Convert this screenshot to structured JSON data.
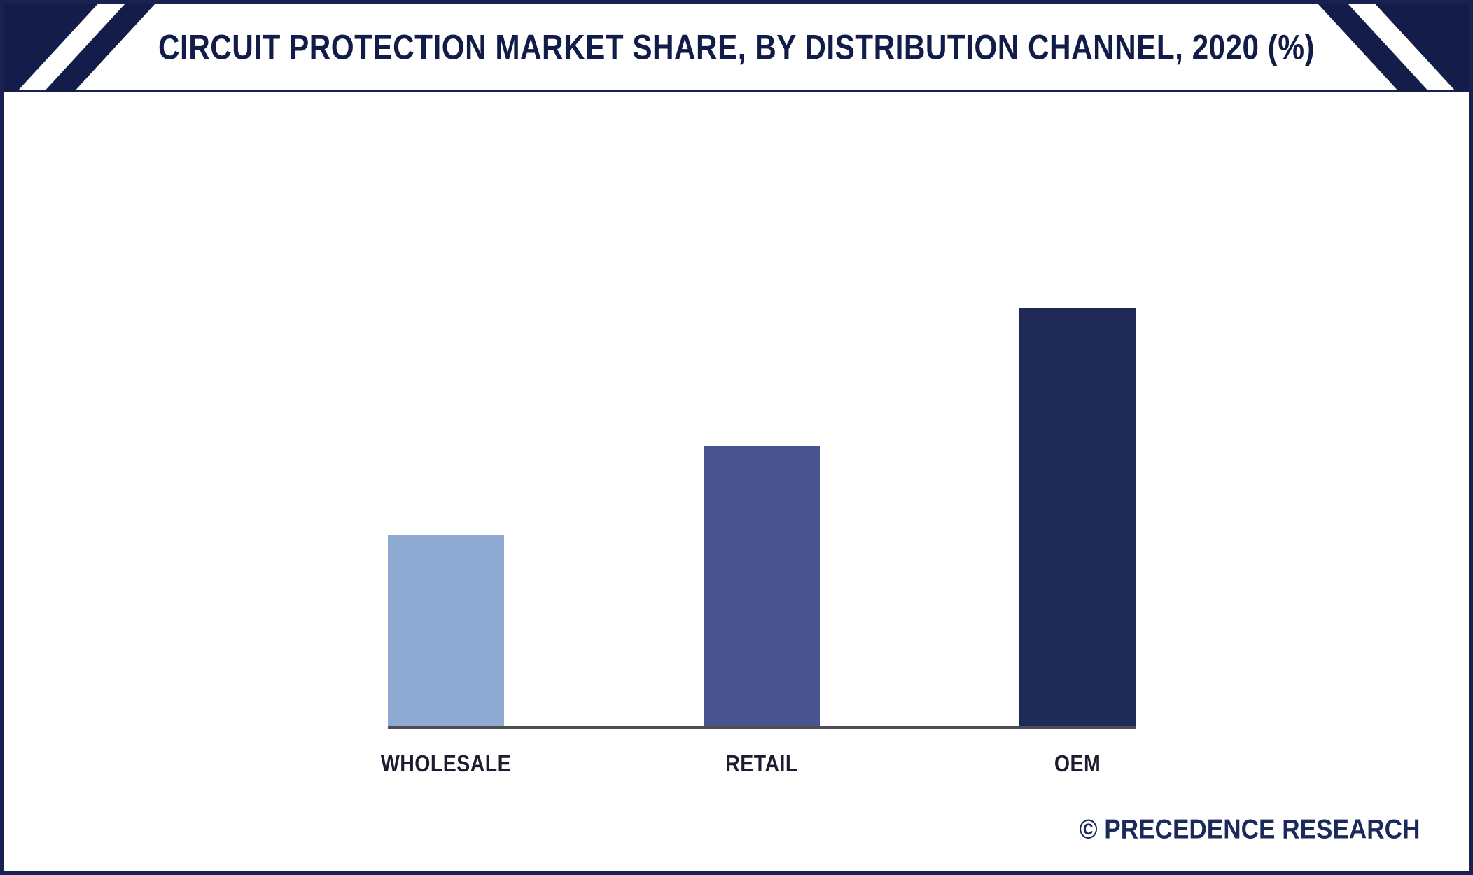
{
  "header": {
    "title": "CIRCUIT PROTECTION MARKET SHARE, BY DISTRIBUTION CHANNEL, 2020 (%)"
  },
  "watermark": "© PRECEDENCE RESEARCH",
  "colors": {
    "border_navy": "#18214f",
    "title_navy": "#121c48",
    "axis_gray": "#4e4e50",
    "deco_navy": "#141d49"
  },
  "chart_data": {
    "type": "bar",
    "title": "Circuit Protection Market Share, by Distribution Channel, 2020 (%)",
    "categories": [
      "WHOLESALE",
      "RETAIL",
      "OEM"
    ],
    "values": [
      21.5,
      31.5,
      47
    ],
    "bar_colors": [
      "#8ea9d2",
      "#49538e",
      "#1f2a56"
    ],
    "xlabel": "",
    "ylabel": "",
    "ylim": [
      0,
      50
    ],
    "gridlines": false,
    "legend_position": "none",
    "value_labels_shown": false,
    "y_axis_shown": false
  }
}
